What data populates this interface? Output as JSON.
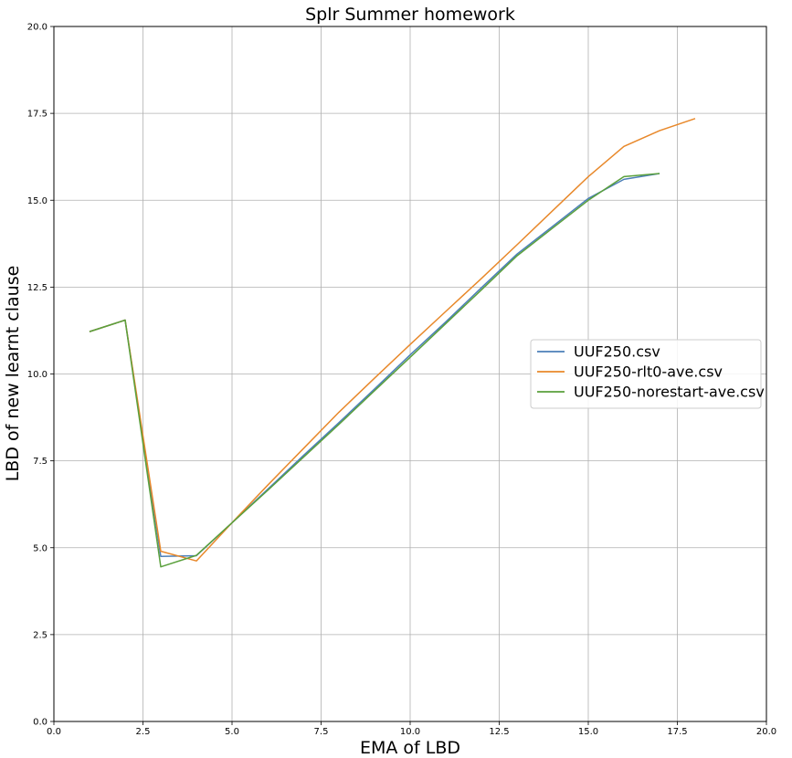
{
  "chart_data": {
    "type": "line",
    "title": "Splr Summer homework",
    "xlabel": "EMA of LBD",
    "ylabel": "LBD of new learnt clause",
    "xlim": [
      0,
      20
    ],
    "ylim": [
      0,
      20
    ],
    "xticks": [
      "0.0",
      "2.5",
      "5.0",
      "7.5",
      "10.0",
      "12.5",
      "15.0",
      "17.5",
      "20.0"
    ],
    "yticks": [
      "0.0",
      "2.5",
      "5.0",
      "7.5",
      "10.0",
      "12.5",
      "15.0",
      "17.5",
      "20.0"
    ],
    "grid": true,
    "legend_position": "center-right",
    "series": [
      {
        "name": "UUF250.csv",
        "color": "#4c7fb8",
        "points": [
          [
            1,
            11.22
          ],
          [
            2,
            11.55
          ],
          [
            3,
            4.75
          ],
          [
            4,
            4.77
          ],
          [
            5,
            5.72
          ],
          [
            6,
            6.68
          ],
          [
            7,
            7.65
          ],
          [
            8,
            8.6
          ],
          [
            9,
            9.57
          ],
          [
            10,
            10.55
          ],
          [
            11,
            11.5
          ],
          [
            12,
            12.48
          ],
          [
            13,
            13.45
          ],
          [
            14,
            14.25
          ],
          [
            15,
            15.05
          ],
          [
            16,
            15.6
          ],
          [
            17,
            15.77
          ]
        ]
      },
      {
        "name": "UUF250-rlt0-ave.csv",
        "color": "#e8882a",
        "points": [
          [
            1,
            11.22
          ],
          [
            2,
            11.55
          ],
          [
            3,
            4.9
          ],
          [
            4,
            4.62
          ],
          [
            5,
            5.72
          ],
          [
            6,
            6.8
          ],
          [
            7,
            7.85
          ],
          [
            8,
            8.9
          ],
          [
            9,
            9.88
          ],
          [
            10,
            10.85
          ],
          [
            11,
            11.8
          ],
          [
            12,
            12.75
          ],
          [
            13,
            13.72
          ],
          [
            14,
            14.7
          ],
          [
            15,
            15.68
          ],
          [
            16,
            16.55
          ],
          [
            17,
            17.0
          ],
          [
            18,
            17.35
          ]
        ]
      },
      {
        "name": "UUF250-norestart-ave.csv",
        "color": "#5aa03c",
        "points": [
          [
            1,
            11.22
          ],
          [
            2,
            11.55
          ],
          [
            3,
            4.45
          ],
          [
            4,
            4.78
          ],
          [
            5,
            5.72
          ],
          [
            6,
            6.65
          ],
          [
            7,
            7.6
          ],
          [
            8,
            8.55
          ],
          [
            9,
            9.52
          ],
          [
            10,
            10.48
          ],
          [
            11,
            11.45
          ],
          [
            12,
            12.42
          ],
          [
            13,
            13.4
          ],
          [
            14,
            14.2
          ],
          [
            15,
            15.0
          ],
          [
            16,
            15.68
          ],
          [
            17,
            15.77
          ]
        ]
      }
    ]
  }
}
